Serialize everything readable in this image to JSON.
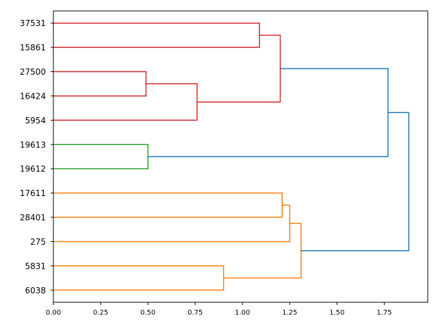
{
  "chart_data": {
    "type": "dendrogram",
    "orientation": "horizontal",
    "title": "",
    "xlabel": "",
    "ylabel": "",
    "xlim": [
      0,
      1.98
    ],
    "x_ticks": [
      0.0,
      0.25,
      0.5,
      0.75,
      1.0,
      1.25,
      1.5,
      1.75
    ],
    "x_tick_labels": [
      "0.00",
      "0.25",
      "0.50",
      "0.75",
      "1.00",
      "1.25",
      "1.50",
      "1.75"
    ],
    "grid": false,
    "leaves": [
      "37531",
      "15861",
      "27500",
      "16424",
      "5954",
      "19613",
      "19612",
      "17611",
      "28401",
      "275",
      "5831",
      "6038"
    ],
    "cluster_colors": {
      "red": "#d62728",
      "green": "#2ca02c",
      "orange": "#ff7f0e",
      "blue": "#1f77b4"
    },
    "merges": [
      {
        "a": "37531",
        "b": "15861",
        "height": 1.09,
        "color": "#d62728"
      },
      {
        "a": "27500",
        "b": "16424",
        "height": 0.49,
        "color": "#d62728"
      },
      {
        "a": "m2",
        "b": "5954",
        "height": 0.76,
        "color": "#d62728"
      },
      {
        "a": "m1",
        "b": "m3",
        "height": 1.2,
        "color": "#d62728"
      },
      {
        "a": "19613",
        "b": "19612",
        "height": 0.5,
        "color": "#2ca02c"
      },
      {
        "a": "m4",
        "b": "m5",
        "height": 1.77,
        "color": "#1f77b4"
      },
      {
        "a": "17611",
        "b": "28401",
        "height": 1.21,
        "color": "#ff7f0e"
      },
      {
        "a": "m7",
        "b": "275",
        "height": 1.25,
        "color": "#ff7f0e"
      },
      {
        "a": "5831",
        "b": "6038",
        "height": 0.9,
        "color": "#ff7f0e"
      },
      {
        "a": "m8",
        "b": "m9",
        "height": 1.31,
        "color": "#ff7f0e"
      },
      {
        "a": "m6",
        "b": "m10",
        "height": 1.88,
        "color": "#1f77b4"
      }
    ]
  }
}
